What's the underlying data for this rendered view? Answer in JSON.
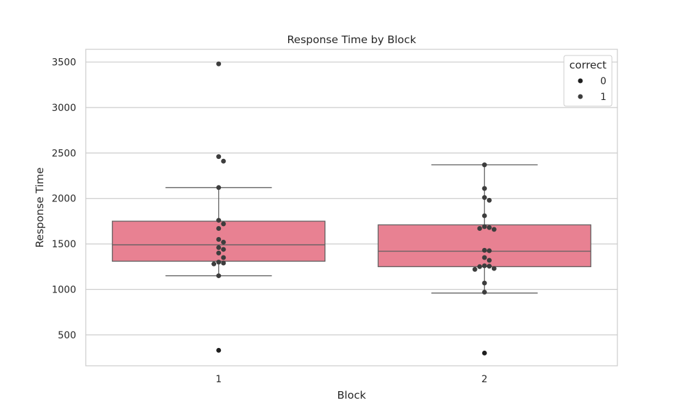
{
  "chart_data": {
    "type": "box",
    "title": "Response Time by Block",
    "xlabel": "Block",
    "ylabel": "Response Time",
    "categories": [
      "1",
      "2"
    ],
    "ylim": [
      160,
      3640
    ],
    "yticks": [
      500,
      1000,
      1500,
      2000,
      2500,
      3000,
      3500
    ],
    "grid": true,
    "box_color": "#e88192",
    "median_color": "#5f5f5f",
    "point_colors": {
      "0": "#1f1f1f",
      "1": "#3d3d3d"
    },
    "legend": {
      "title": "correct",
      "entries": [
        "0",
        "1"
      ],
      "placement": "top-right"
    },
    "boxes": [
      {
        "category": "1",
        "whisker_low": 1150,
        "q1": 1310,
        "median": 1490,
        "q3": 1750,
        "whisker_high": 2120
      },
      {
        "category": "2",
        "whisker_low": 960,
        "q1": 1250,
        "median": 1420,
        "q3": 1710,
        "whisker_high": 2370
      }
    ],
    "points": [
      {
        "category": "1",
        "y": 3480,
        "correct": "1"
      },
      {
        "category": "1",
        "y": 2460,
        "correct": "1"
      },
      {
        "category": "1",
        "y": 2410,
        "correct": "1"
      },
      {
        "category": "1",
        "y": 2120,
        "correct": "1"
      },
      {
        "category": "1",
        "y": 1760,
        "correct": "1"
      },
      {
        "category": "1",
        "y": 1720,
        "correct": "1"
      },
      {
        "category": "1",
        "y": 1670,
        "correct": "1"
      },
      {
        "category": "1",
        "y": 1550,
        "correct": "1"
      },
      {
        "category": "1",
        "y": 1520,
        "correct": "1"
      },
      {
        "category": "1",
        "y": 1460,
        "correct": "1"
      },
      {
        "category": "1",
        "y": 1440,
        "correct": "1"
      },
      {
        "category": "1",
        "y": 1400,
        "correct": "1"
      },
      {
        "category": "1",
        "y": 1350,
        "correct": "1"
      },
      {
        "category": "1",
        "y": 1300,
        "correct": "1"
      },
      {
        "category": "1",
        "y": 1290,
        "correct": "1"
      },
      {
        "category": "1",
        "y": 1280,
        "correct": "1"
      },
      {
        "category": "1",
        "y": 1150,
        "correct": "1"
      },
      {
        "category": "1",
        "y": 330,
        "correct": "0"
      },
      {
        "category": "2",
        "y": 2370,
        "correct": "1"
      },
      {
        "category": "2",
        "y": 2110,
        "correct": "1"
      },
      {
        "category": "2",
        "y": 2010,
        "correct": "1"
      },
      {
        "category": "2",
        "y": 1980,
        "correct": "1"
      },
      {
        "category": "2",
        "y": 1810,
        "correct": "1"
      },
      {
        "category": "2",
        "y": 1690,
        "correct": "1"
      },
      {
        "category": "2",
        "y": 1680,
        "correct": "1"
      },
      {
        "category": "2",
        "y": 1670,
        "correct": "1"
      },
      {
        "category": "2",
        "y": 1660,
        "correct": "1"
      },
      {
        "category": "2",
        "y": 1430,
        "correct": "1"
      },
      {
        "category": "2",
        "y": 1425,
        "correct": "1"
      },
      {
        "category": "2",
        "y": 1350,
        "correct": "1"
      },
      {
        "category": "2",
        "y": 1320,
        "correct": "1"
      },
      {
        "category": "2",
        "y": 1260,
        "correct": "1"
      },
      {
        "category": "2",
        "y": 1255,
        "correct": "1"
      },
      {
        "category": "2",
        "y": 1250,
        "correct": "1"
      },
      {
        "category": "2",
        "y": 1230,
        "correct": "1"
      },
      {
        "category": "2",
        "y": 1220,
        "correct": "1"
      },
      {
        "category": "2",
        "y": 1070,
        "correct": "1"
      },
      {
        "category": "2",
        "y": 970,
        "correct": "1"
      },
      {
        "category": "2",
        "y": 300,
        "correct": "0"
      }
    ]
  }
}
